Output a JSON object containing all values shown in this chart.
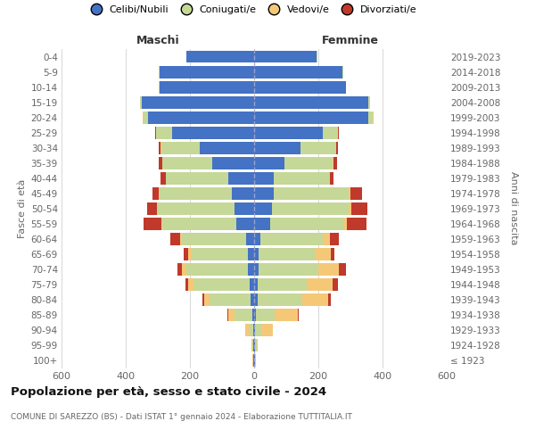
{
  "age_groups": [
    "100+",
    "95-99",
    "90-94",
    "85-89",
    "80-84",
    "75-79",
    "70-74",
    "65-69",
    "60-64",
    "55-59",
    "50-54",
    "45-49",
    "40-44",
    "35-39",
    "30-34",
    "25-29",
    "20-24",
    "15-19",
    "10-14",
    "5-9",
    "0-4"
  ],
  "birth_years": [
    "≤ 1923",
    "1924-1928",
    "1929-1933",
    "1934-1938",
    "1939-1943",
    "1944-1948",
    "1949-1953",
    "1954-1958",
    "1959-1963",
    "1964-1968",
    "1969-1973",
    "1974-1978",
    "1979-1983",
    "1984-1988",
    "1989-1993",
    "1994-1998",
    "1999-2003",
    "2004-2008",
    "2009-2013",
    "2014-2018",
    "2019-2023"
  ],
  "maschi": {
    "celibi": [
      2,
      2,
      3,
      5,
      10,
      15,
      20,
      20,
      25,
      55,
      60,
      70,
      80,
      130,
      170,
      255,
      330,
      350,
      295,
      295,
      210
    ],
    "coniugati": [
      2,
      3,
      15,
      55,
      130,
      175,
      190,
      175,
      200,
      230,
      240,
      225,
      195,
      155,
      120,
      50,
      15,
      5,
      2,
      2,
      1
    ],
    "vedovi": [
      1,
      2,
      10,
      20,
      15,
      15,
      15,
      10,
      5,
      5,
      3,
      2,
      1,
      1,
      1,
      1,
      1,
      0,
      0,
      0,
      0
    ],
    "divorziati": [
      0,
      0,
      0,
      2,
      5,
      10,
      15,
      15,
      30,
      55,
      30,
      20,
      15,
      10,
      5,
      2,
      1,
      0,
      0,
      0,
      0
    ]
  },
  "femmine": {
    "nubili": [
      2,
      2,
      3,
      5,
      10,
      10,
      15,
      15,
      20,
      50,
      55,
      60,
      60,
      95,
      145,
      215,
      355,
      355,
      285,
      275,
      195
    ],
    "coniugate": [
      2,
      5,
      20,
      60,
      140,
      155,
      185,
      175,
      195,
      230,
      240,
      235,
      175,
      150,
      110,
      45,
      15,
      5,
      2,
      2,
      1
    ],
    "vedove": [
      2,
      5,
      35,
      70,
      80,
      80,
      65,
      50,
      20,
      10,
      8,
      5,
      2,
      2,
      1,
      1,
      1,
      0,
      0,
      0,
      0
    ],
    "divorziate": [
      0,
      0,
      1,
      3,
      10,
      15,
      20,
      10,
      30,
      60,
      50,
      35,
      10,
      10,
      5,
      2,
      1,
      0,
      0,
      0,
      0
    ]
  },
  "colors": {
    "celibi": "#4472C4",
    "coniugati": "#C5D898",
    "vedovi": "#F5C878",
    "divorziati": "#C0392B"
  },
  "xlim": 600,
  "title": "Popolazione per età, sesso e stato civile - 2024",
  "subtitle": "COMUNE DI SAREZZO (BS) - Dati ISTAT 1° gennaio 2024 - Elaborazione TUTTITALIA.IT",
  "label_maschi": "Maschi",
  "label_femmine": "Femmine",
  "ylabel_left": "Fasce di età",
  "ylabel_right": "Anni di nascita",
  "legend_labels": [
    "Celibi/Nubili",
    "Coniugati/e",
    "Vedovi/e",
    "Divorziati/e"
  ],
  "bg_color": "#FFFFFF",
  "grid_color": "#CCCCCC",
  "text_color": "#666666",
  "title_color": "#111111"
}
